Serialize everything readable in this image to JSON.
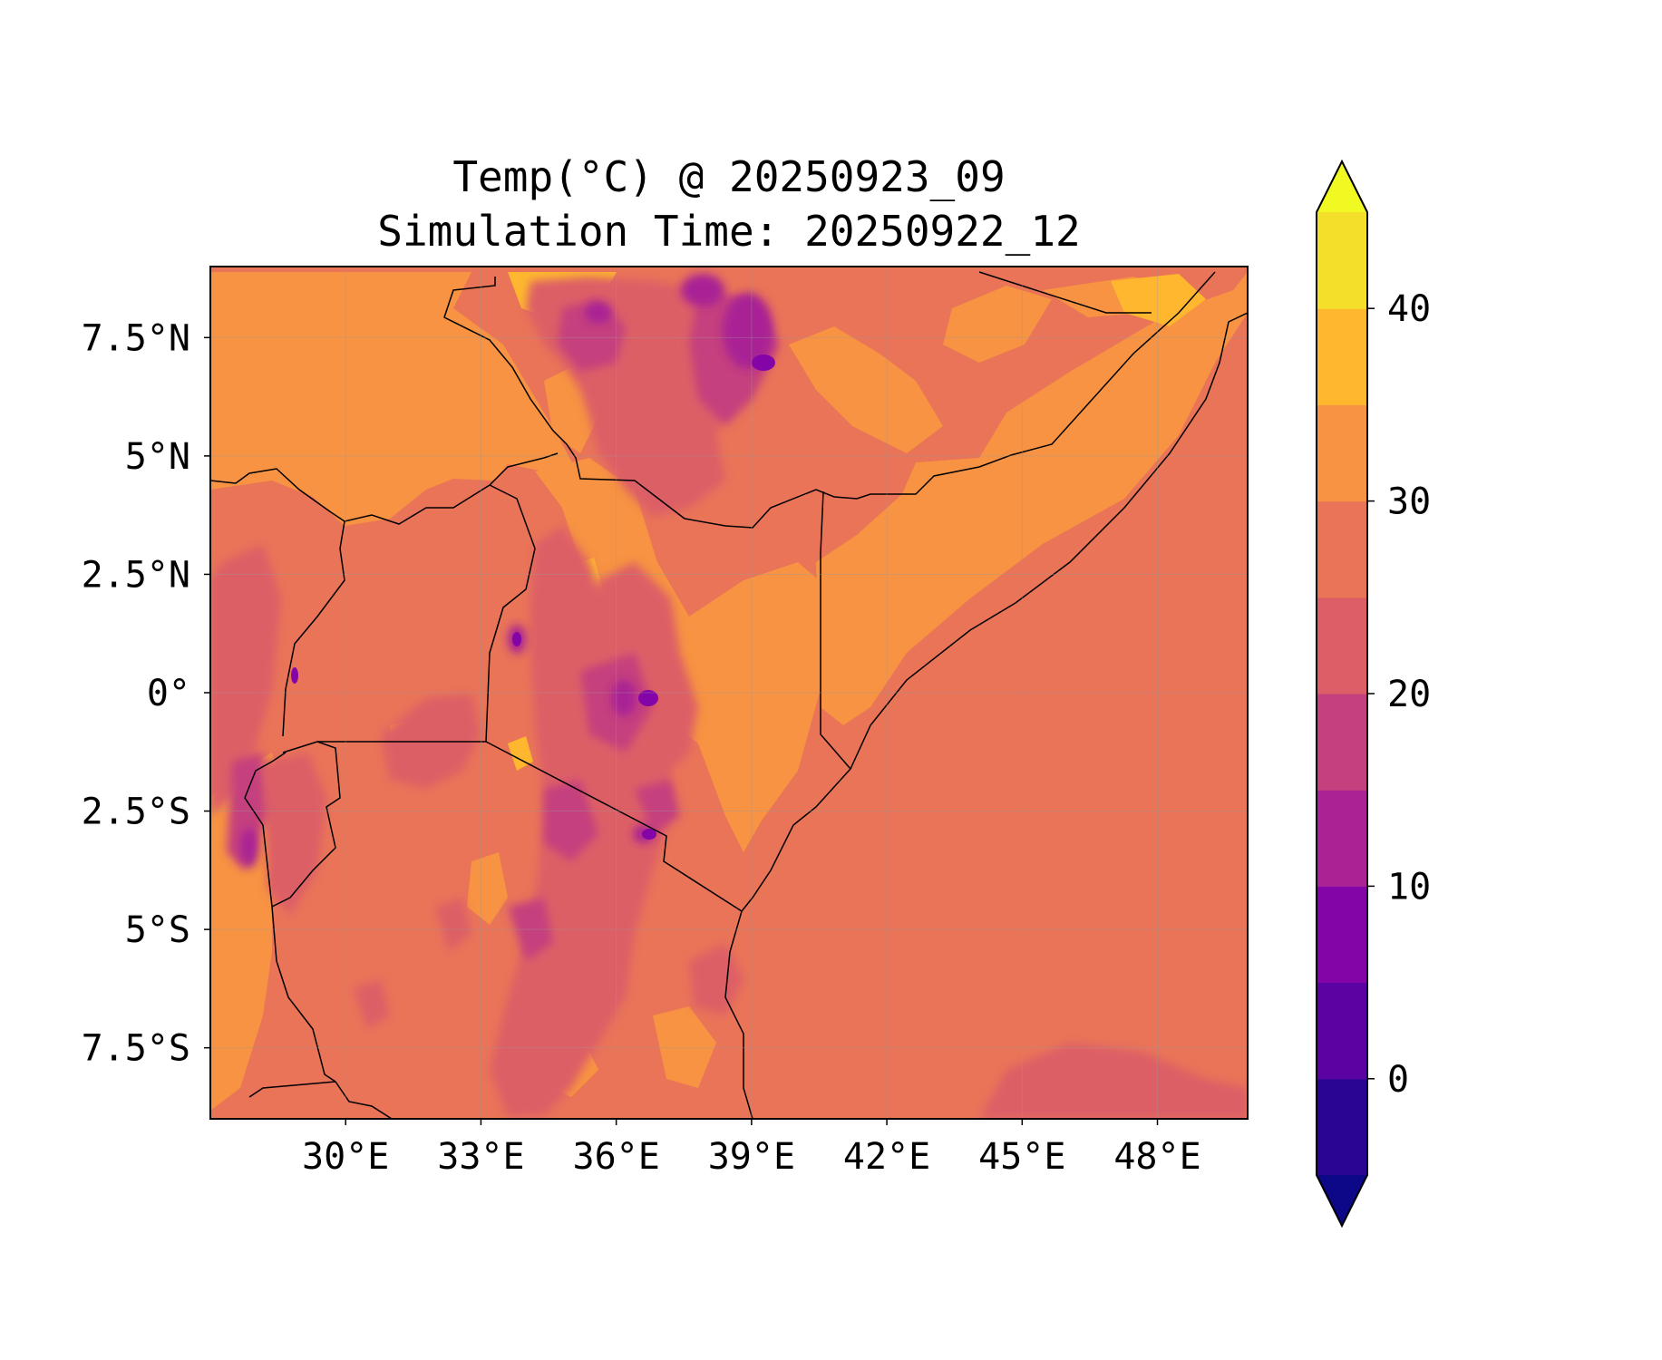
{
  "map": {
    "title_line1": "Temp(°C) @ 20250923_09",
    "title_line2": "Simulation Time: 20250922_12",
    "lon_range": [
      27.0,
      50.0
    ],
    "lat_range": [
      -9.0,
      9.0
    ],
    "lon_ticks": [
      {
        "value": 30,
        "label": "30°E"
      },
      {
        "value": 33,
        "label": "33°E"
      },
      {
        "value": 36,
        "label": "36°E"
      },
      {
        "value": 39,
        "label": "39°E"
      },
      {
        "value": 42,
        "label": "42°E"
      },
      {
        "value": 45,
        "label": "45°E"
      },
      {
        "value": 48,
        "label": "48°E"
      }
    ],
    "lat_ticks": [
      {
        "value": 7.5,
        "label": "7.5°N"
      },
      {
        "value": 5,
        "label": "5°N"
      },
      {
        "value": 2.5,
        "label": "2.5°N"
      },
      {
        "value": 0,
        "label": "0°"
      },
      {
        "value": -2.5,
        "label": "2.5°S"
      },
      {
        "value": -5,
        "label": "5°S"
      },
      {
        "value": -7.5,
        "label": "7.5°S"
      }
    ],
    "ocean_level_color": "#e97458"
  },
  "colorbar": {
    "levels": [
      -5,
      0,
      5,
      10,
      15,
      20,
      25,
      30,
      35,
      40,
      45
    ],
    "colors": [
      "#2a0593",
      "#5b02a3",
      "#8405a7",
      "#a92395",
      "#c5407e",
      "#dd5e66",
      "#e97458",
      "#f79342",
      "#feb72e",
      "#f4e02b"
    ],
    "under_color": "#0d0887",
    "over_color": "#f0f921",
    "ticks": [
      {
        "value": 0,
        "label": "0"
      },
      {
        "value": 10,
        "label": "10"
      },
      {
        "value": 20,
        "label": "20"
      },
      {
        "value": 30,
        "label": "30"
      },
      {
        "value": 40,
        "label": "40"
      }
    ]
  }
}
